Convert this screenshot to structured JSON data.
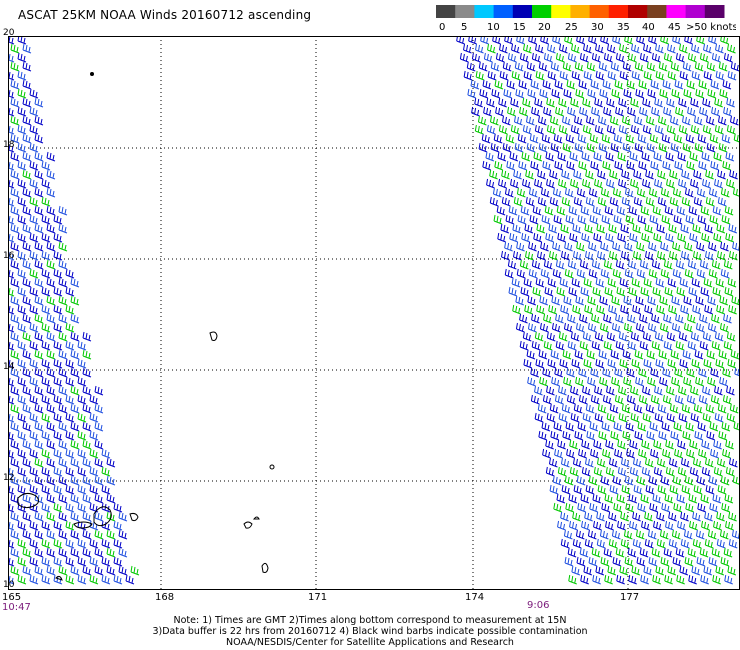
{
  "title": "ASCAT 25KM NOAA Winds 20160712 ascending",
  "legend": {
    "swatches": [
      "#444444",
      "#8a8a8a",
      "#00c8ff",
      "#0060ff",
      "#0000b4",
      "#00d000",
      "#ffff00",
      "#ffb000",
      "#ff6000",
      "#ff2000",
      "#b00000",
      "#7a4020",
      "#ff00ff",
      "#b000d0",
      "#5a006a"
    ],
    "labels": [
      "0",
      "5",
      "10",
      "15",
      "20",
      "25",
      "30",
      "35",
      "40",
      "45",
      ">50 knots"
    ]
  },
  "map": {
    "lat_labels": [
      "20",
      "18",
      "16",
      "14",
      "12",
      "10"
    ],
    "lon_labels": [
      "165",
      "168",
      "171",
      "174",
      "177"
    ],
    "left_time": "10:47",
    "right_time": "9:06"
  },
  "colors": {
    "barb_blue": "#0000c8",
    "barb_mid_blue": "#2050e0",
    "barb_green": "#00c800",
    "grid": "#000000"
  },
  "notes": [
    "Note: 1) Times are GMT 2)Times along bottom correspond to measurement at 15N",
    "3)Data buffer is 22 hrs from 20160712 4) Black wind barbs indicate possible contamination",
    "NOAA/NESDIS/Center for Satellite Applications and Research"
  ]
}
